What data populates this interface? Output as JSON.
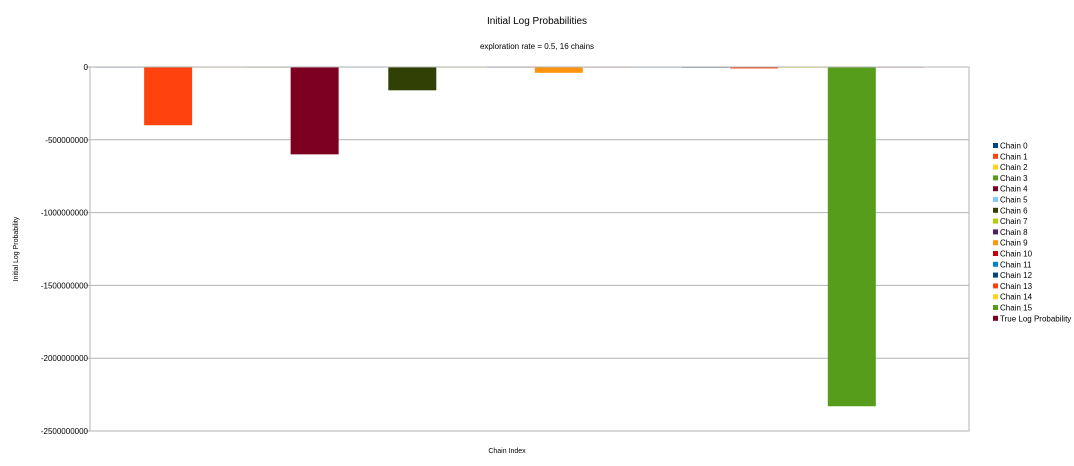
{
  "chart_data": {
    "type": "bar",
    "title": "Initial Log Probabilities",
    "subtitle": "exploration rate = 0.5, 16 chains",
    "xlabel": "Chain Index",
    "ylabel": "Initial Log Probability",
    "ylim": [
      -2500000000,
      0
    ],
    "yticks": [
      0,
      -500000000,
      -1000000000,
      -1500000000,
      -2000000000,
      -2500000000
    ],
    "ytick_labels": [
      "0",
      "-500000000",
      "-1000000000",
      "-1500000000",
      "-2000000000",
      "-2500000000"
    ],
    "grid": true,
    "legend_position": "right",
    "series": [
      {
        "name": "Chain 0",
        "color": "#004586",
        "value": -1500000
      },
      {
        "name": "Chain 1",
        "color": "#ff420e",
        "value": -400000000
      },
      {
        "name": "Chain 2",
        "color": "#ffd320",
        "value": -1000000
      },
      {
        "name": "Chain 3",
        "color": "#579d1c",
        "value": -1000000
      },
      {
        "name": "Chain 4",
        "color": "#7e0021",
        "value": -600000000
      },
      {
        "name": "Chain 5",
        "color": "#83caff",
        "value": -1000000
      },
      {
        "name": "Chain 6",
        "color": "#314004",
        "value": -160000000
      },
      {
        "name": "Chain 7",
        "color": "#aecf00",
        "value": -1000000
      },
      {
        "name": "Chain 8",
        "color": "#4b1f6f",
        "value": -1000000
      },
      {
        "name": "Chain 9",
        "color": "#ff950e",
        "value": -40000000
      },
      {
        "name": "Chain 10",
        "color": "#c5000b",
        "value": -1000000
      },
      {
        "name": "Chain 11",
        "color": "#0084d1",
        "value": -1000000
      },
      {
        "name": "Chain 12",
        "color": "#004586",
        "value": -5000000
      },
      {
        "name": "Chain 13",
        "color": "#ff420e",
        "value": -10000000
      },
      {
        "name": "Chain 14",
        "color": "#ffd320",
        "value": -5000000
      },
      {
        "name": "Chain 15",
        "color": "#579d1c",
        "value": -2330000000
      },
      {
        "name": "True Log Probability",
        "color": "#7e0021",
        "value": 0
      }
    ]
  }
}
